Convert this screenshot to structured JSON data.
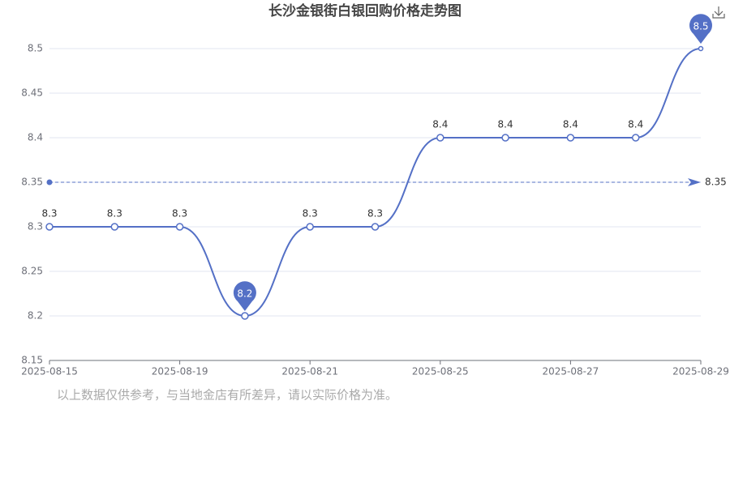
{
  "chart_data": {
    "type": "line",
    "title": "长沙金银街白银回购价格走势图",
    "note": "以上数据仅供参考，与当地金店有所差异，请以实际价格为准。",
    "categories": [
      "2025-08-15",
      null,
      "2025-08-19",
      null,
      "2025-08-21",
      null,
      "2025-08-25",
      null,
      "2025-08-27",
      null,
      "2025-08-29"
    ],
    "values": [
      8.3,
      8.3,
      8.3,
      8.2,
      8.3,
      8.3,
      8.4,
      8.4,
      8.4,
      8.4,
      8.5
    ],
    "color": "#5470c6",
    "average": 8.35,
    "smooth": true,
    "ylim": [
      8.15,
      8.5
    ],
    "yticks": [
      8.15,
      8.2,
      8.25,
      8.3,
      8.35,
      8.4,
      8.45,
      8.5
    ],
    "grid": true
  }
}
